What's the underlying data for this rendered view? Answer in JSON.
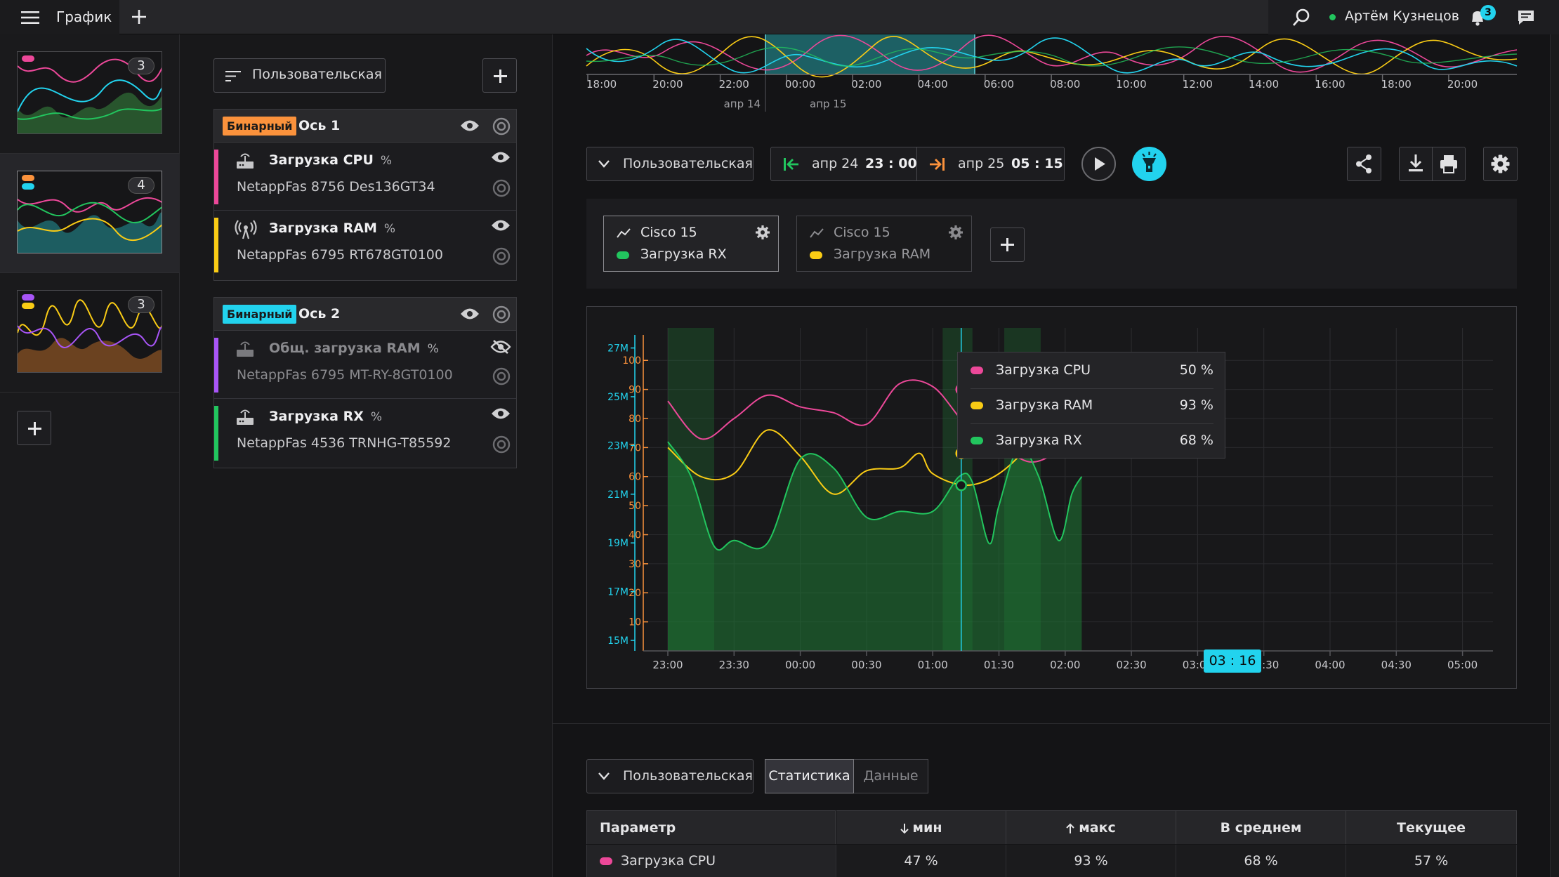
{
  "topbar": {
    "title": "График",
    "user_name": "Артём Кузнецов",
    "notifications_count": "3"
  },
  "thumbnails": [
    {
      "count": "3",
      "pills": [
        "#ec4899"
      ],
      "active": false
    },
    {
      "count": "4",
      "pills": [
        "#fb923c",
        "#22d3ee"
      ],
      "active": true
    },
    {
      "count": "3",
      "pills": [
        "#a855f7",
        "#facc15"
      ],
      "active": false
    }
  ],
  "series_panel": {
    "mode_label": "Пользовательская",
    "axes": [
      {
        "tag": "Бинарный",
        "tag_color": "#fb923c",
        "name": "Ось 1",
        "series": [
          {
            "name": "Загрузка CPU",
            "unit": "%",
            "source": "NetappFas 8756 Des136GT34",
            "color": "#ec4899",
            "icon": "router-icon",
            "hidden": false
          },
          {
            "name": "Загрузка RAM",
            "unit": "%",
            "source": "NetappFas 6795 RT678GT0100",
            "color": "#facc15",
            "icon": "antenna-icon",
            "hidden": false
          }
        ]
      },
      {
        "tag": "Бинарный",
        "tag_color": "#22d3ee",
        "name": "Ось 2",
        "series": [
          {
            "name": "Общ. загрузка RAM",
            "unit": "%",
            "source": "NetappFas 6795 MT-RY-8GT0100",
            "color": "#a855f7",
            "icon": "router-icon",
            "hidden": true
          },
          {
            "name": "Загрузка RX",
            "unit": "%",
            "source": "NetappFas 4536 TRNHG-T85592",
            "color": "#22c55e",
            "icon": "router-icon",
            "hidden": false
          }
        ]
      }
    ]
  },
  "navigator": {
    "time_labels": [
      "18:00",
      "20:00",
      "22:00",
      "00:00",
      "02:00",
      "04:00",
      "06:00",
      "08:00",
      "10:00",
      "12:00",
      "14:00",
      "16:00",
      "18:00",
      "20:00"
    ],
    "date_labels": [
      "апр 14",
      "апр 15"
    ]
  },
  "controls": {
    "mode_label": "Пользовательская",
    "range_start_date": "апр 24",
    "range_start_time": "23 : 00",
    "range_end_date": "апр 25",
    "range_end_time": "05 : 15"
  },
  "legend_cards": [
    {
      "device": "Cisco 15",
      "series": "Загрузка RX",
      "dot_color": "#22c55e",
      "active": true
    },
    {
      "device": "Cisco 15",
      "series": "Загрузка RAM",
      "dot_color": "#facc15",
      "active": false
    }
  ],
  "chart_data": {
    "type": "line",
    "x": [
      "23:00",
      "23:30",
      "00:00",
      "00:30",
      "01:00",
      "01:30",
      "02:00",
      "02:30",
      "03:00",
      "03:30",
      "04:00",
      "04:30",
      "05:00"
    ],
    "left_axis_outer": {
      "color": "#22d3ee",
      "ticks": [
        "15M",
        "17M",
        "19M",
        "21M",
        "23M",
        "25M",
        "27M"
      ],
      "range": [
        15,
        27.4
      ]
    },
    "left_axis_inner": {
      "color": "#fb923c",
      "ticks": [
        "10",
        "20",
        "30",
        "40",
        "50",
        "60",
        "70",
        "80",
        "90",
        "100"
      ],
      "range": [
        0,
        100
      ]
    },
    "series": [
      {
        "name": "Загрузка CPU",
        "color": "#ec4899",
        "points": [
          [
            0,
            86
          ],
          [
            0.5,
            73
          ],
          [
            1,
            80
          ],
          [
            1.5,
            88
          ],
          [
            2,
            84
          ],
          [
            2.5,
            82
          ],
          [
            3,
            78
          ],
          [
            3.5,
            92
          ],
          [
            4,
            91
          ],
          [
            4.5,
            78
          ],
          [
            5,
            71
          ],
          [
            5.5,
            65
          ],
          [
            6,
            71
          ],
          [
            6.25,
            81
          ]
        ]
      },
      {
        "name": "Загрузка RAM",
        "color": "#facc15",
        "points": [
          [
            0,
            70
          ],
          [
            0.5,
            60
          ],
          [
            1,
            61
          ],
          [
            1.5,
            76
          ],
          [
            2,
            67
          ],
          [
            2.5,
            54
          ],
          [
            3,
            62
          ],
          [
            3.5,
            63
          ],
          [
            3.8,
            68
          ],
          [
            4,
            61
          ],
          [
            4.5,
            57
          ],
          [
            5,
            61
          ],
          [
            5.5,
            72
          ],
          [
            6,
            88
          ],
          [
            6.25,
            92
          ]
        ]
      },
      {
        "name": "Загрузка RX",
        "color": "#22c55e",
        "area": true,
        "points": [
          [
            0,
            72
          ],
          [
            0.35,
            60
          ],
          [
            0.7,
            36
          ],
          [
            1,
            38
          ],
          [
            1.5,
            37
          ],
          [
            2,
            66
          ],
          [
            2.5,
            63
          ],
          [
            3,
            46
          ],
          [
            3.5,
            48
          ],
          [
            4,
            48
          ],
          [
            4.4,
            60
          ],
          [
            4.6,
            58
          ],
          [
            4.85,
            37
          ],
          [
            5,
            50
          ],
          [
            5.3,
            70
          ],
          [
            5.6,
            60
          ],
          [
            5.9,
            38
          ],
          [
            6.1,
            54
          ],
          [
            6.25,
            60
          ]
        ]
      }
    ],
    "highlight_ranges": [
      [
        0,
        0.7
      ],
      [
        4.15,
        4.6
      ],
      [
        5.08,
        5.63
      ]
    ],
    "cursor_time": "03 : 16"
  },
  "tooltip": [
    {
      "label": "Загрузка CPU",
      "value": "50 %",
      "color": "#ec4899"
    },
    {
      "label": "Загрузка RAM",
      "value": "93 %",
      "color": "#facc15"
    },
    {
      "label": "Загрузка RX",
      "value": "68 %",
      "color": "#22c55e"
    }
  ],
  "stats": {
    "mode_label": "Пользовательская",
    "tab_stats": "Статистика",
    "tab_data": "Данные",
    "headers": [
      "Параметр",
      "мин",
      "макс",
      "В среднем",
      "Текущее"
    ],
    "rows": [
      {
        "param": "Загрузка CPU",
        "color": "#ec4899",
        "min": "47 %",
        "max": "93 %",
        "avg": "68 %",
        "current": "57 %"
      }
    ]
  }
}
